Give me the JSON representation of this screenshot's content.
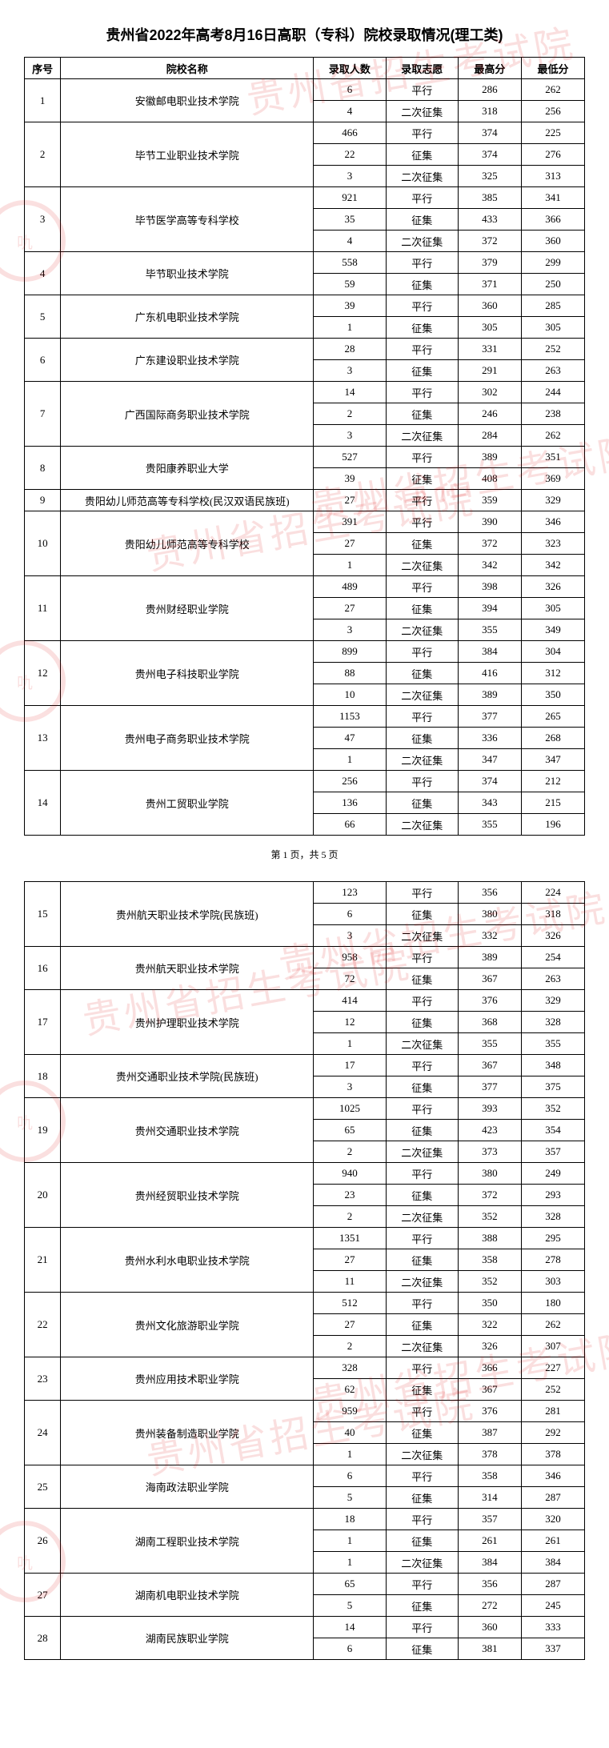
{
  "title": "贵州省2022年高考8月16日高职（专科）院校录取情况(理工类)",
  "headers": {
    "seq": "序号",
    "name": "院校名称",
    "count": "录取人数",
    "wish": "录取志愿",
    "max": "最高分",
    "min": "最低分"
  },
  "pager": "第 1 页，共 5 页",
  "watermark_text": "贵州省招生考试院",
  "watermark_color": "#dd0000",
  "table_border_color": "#000000",
  "font_color": "#000000",
  "background": "#ffffff",
  "schools_p1": [
    {
      "seq": "1",
      "name": "安徽邮电职业技术学院",
      "rows": [
        {
          "count": "6",
          "wish": "平行",
          "max": "286",
          "min": "262"
        },
        {
          "count": "4",
          "wish": "二次征集",
          "max": "318",
          "min": "256"
        }
      ]
    },
    {
      "seq": "2",
      "name": "毕节工业职业技术学院",
      "rows": [
        {
          "count": "466",
          "wish": "平行",
          "max": "374",
          "min": "225"
        },
        {
          "count": "22",
          "wish": "征集",
          "max": "374",
          "min": "276"
        },
        {
          "count": "3",
          "wish": "二次征集",
          "max": "325",
          "min": "313"
        }
      ]
    },
    {
      "seq": "3",
      "name": "毕节医学高等专科学校",
      "rows": [
        {
          "count": "921",
          "wish": "平行",
          "max": "385",
          "min": "341"
        },
        {
          "count": "35",
          "wish": "征集",
          "max": "433",
          "min": "366"
        },
        {
          "count": "4",
          "wish": "二次征集",
          "max": "372",
          "min": "360"
        }
      ]
    },
    {
      "seq": "4",
      "name": "毕节职业技术学院",
      "rows": [
        {
          "count": "558",
          "wish": "平行",
          "max": "379",
          "min": "299"
        },
        {
          "count": "59",
          "wish": "征集",
          "max": "371",
          "min": "250"
        }
      ]
    },
    {
      "seq": "5",
      "name": "广东机电职业技术学院",
      "rows": [
        {
          "count": "39",
          "wish": "平行",
          "max": "360",
          "min": "285"
        },
        {
          "count": "1",
          "wish": "征集",
          "max": "305",
          "min": "305"
        }
      ]
    },
    {
      "seq": "6",
      "name": "广东建设职业技术学院",
      "rows": [
        {
          "count": "28",
          "wish": "平行",
          "max": "331",
          "min": "252"
        },
        {
          "count": "3",
          "wish": "征集",
          "max": "291",
          "min": "263"
        }
      ]
    },
    {
      "seq": "7",
      "name": "广西国际商务职业技术学院",
      "rows": [
        {
          "count": "14",
          "wish": "平行",
          "max": "302",
          "min": "244"
        },
        {
          "count": "2",
          "wish": "征集",
          "max": "246",
          "min": "238"
        },
        {
          "count": "3",
          "wish": "二次征集",
          "max": "284",
          "min": "262"
        }
      ]
    },
    {
      "seq": "8",
      "name": "贵阳康养职业大学",
      "rows": [
        {
          "count": "527",
          "wish": "平行",
          "max": "389",
          "min": "351"
        },
        {
          "count": "39",
          "wish": "征集",
          "max": "408",
          "min": "369"
        }
      ]
    },
    {
      "seq": "9",
      "name": "贵阳幼儿师范高等专科学校(民汉双语民族班)",
      "rows": [
        {
          "count": "27",
          "wish": "平行",
          "max": "359",
          "min": "329"
        }
      ]
    },
    {
      "seq": "10",
      "name": "贵阳幼儿师范高等专科学校",
      "rows": [
        {
          "count": "391",
          "wish": "平行",
          "max": "390",
          "min": "346"
        },
        {
          "count": "27",
          "wish": "征集",
          "max": "372",
          "min": "323"
        },
        {
          "count": "1",
          "wish": "二次征集",
          "max": "342",
          "min": "342"
        }
      ]
    },
    {
      "seq": "11",
      "name": "贵州财经职业学院",
      "rows": [
        {
          "count": "489",
          "wish": "平行",
          "max": "398",
          "min": "326"
        },
        {
          "count": "27",
          "wish": "征集",
          "max": "394",
          "min": "305"
        },
        {
          "count": "3",
          "wish": "二次征集",
          "max": "355",
          "min": "349"
        }
      ]
    },
    {
      "seq": "12",
      "name": "贵州电子科技职业学院",
      "rows": [
        {
          "count": "899",
          "wish": "平行",
          "max": "384",
          "min": "304"
        },
        {
          "count": "88",
          "wish": "征集",
          "max": "416",
          "min": "312"
        },
        {
          "count": "10",
          "wish": "二次征集",
          "max": "389",
          "min": "350"
        }
      ]
    },
    {
      "seq": "13",
      "name": "贵州电子商务职业技术学院",
      "rows": [
        {
          "count": "1153",
          "wish": "平行",
          "max": "377",
          "min": "265"
        },
        {
          "count": "47",
          "wish": "征集",
          "max": "336",
          "min": "268"
        },
        {
          "count": "1",
          "wish": "二次征集",
          "max": "347",
          "min": "347"
        }
      ]
    },
    {
      "seq": "14",
      "name": "贵州工贸职业学院",
      "rows": [
        {
          "count": "256",
          "wish": "平行",
          "max": "374",
          "min": "212"
        },
        {
          "count": "136",
          "wish": "征集",
          "max": "343",
          "min": "215"
        },
        {
          "count": "66",
          "wish": "二次征集",
          "max": "355",
          "min": "196"
        }
      ]
    }
  ],
  "schools_p2": [
    {
      "seq": "15",
      "name": "贵州航天职业技术学院(民族班)",
      "rows": [
        {
          "count": "123",
          "wish": "平行",
          "max": "356",
          "min": "224"
        },
        {
          "count": "6",
          "wish": "征集",
          "max": "380",
          "min": "318"
        },
        {
          "count": "3",
          "wish": "二次征集",
          "max": "332",
          "min": "326"
        }
      ]
    },
    {
      "seq": "16",
      "name": "贵州航天职业技术学院",
      "rows": [
        {
          "count": "958",
          "wish": "平行",
          "max": "389",
          "min": "254"
        },
        {
          "count": "72",
          "wish": "征集",
          "max": "367",
          "min": "263"
        }
      ]
    },
    {
      "seq": "17",
      "name": "贵州护理职业技术学院",
      "rows": [
        {
          "count": "414",
          "wish": "平行",
          "max": "376",
          "min": "329"
        },
        {
          "count": "12",
          "wish": "征集",
          "max": "368",
          "min": "328"
        },
        {
          "count": "1",
          "wish": "二次征集",
          "max": "355",
          "min": "355"
        }
      ]
    },
    {
      "seq": "18",
      "name": "贵州交通职业技术学院(民族班)",
      "rows": [
        {
          "count": "17",
          "wish": "平行",
          "max": "367",
          "min": "348"
        },
        {
          "count": "3",
          "wish": "征集",
          "max": "377",
          "min": "375"
        }
      ]
    },
    {
      "seq": "19",
      "name": "贵州交通职业技术学院",
      "rows": [
        {
          "count": "1025",
          "wish": "平行",
          "max": "393",
          "min": "352"
        },
        {
          "count": "65",
          "wish": "征集",
          "max": "423",
          "min": "354"
        },
        {
          "count": "2",
          "wish": "二次征集",
          "max": "373",
          "min": "357"
        }
      ]
    },
    {
      "seq": "20",
      "name": "贵州经贸职业技术学院",
      "rows": [
        {
          "count": "940",
          "wish": "平行",
          "max": "380",
          "min": "249"
        },
        {
          "count": "23",
          "wish": "征集",
          "max": "372",
          "min": "293"
        },
        {
          "count": "2",
          "wish": "二次征集",
          "max": "352",
          "min": "328"
        }
      ]
    },
    {
      "seq": "21",
      "name": "贵州水利水电职业技术学院",
      "rows": [
        {
          "count": "1351",
          "wish": "平行",
          "max": "388",
          "min": "295"
        },
        {
          "count": "27",
          "wish": "征集",
          "max": "358",
          "min": "278"
        },
        {
          "count": "11",
          "wish": "二次征集",
          "max": "352",
          "min": "303"
        }
      ]
    },
    {
      "seq": "22",
      "name": "贵州文化旅游职业学院",
      "rows": [
        {
          "count": "512",
          "wish": "平行",
          "max": "350",
          "min": "180"
        },
        {
          "count": "27",
          "wish": "征集",
          "max": "322",
          "min": "262"
        },
        {
          "count": "2",
          "wish": "二次征集",
          "max": "326",
          "min": "307"
        }
      ]
    },
    {
      "seq": "23",
      "name": "贵州应用技术职业学院",
      "rows": [
        {
          "count": "328",
          "wish": "平行",
          "max": "366",
          "min": "227"
        },
        {
          "count": "62",
          "wish": "征集",
          "max": "367",
          "min": "252"
        }
      ]
    },
    {
      "seq": "24",
      "name": "贵州装备制造职业学院",
      "rows": [
        {
          "count": "959",
          "wish": "平行",
          "max": "376",
          "min": "281"
        },
        {
          "count": "40",
          "wish": "征集",
          "max": "387",
          "min": "292"
        },
        {
          "count": "1",
          "wish": "二次征集",
          "max": "378",
          "min": "378"
        }
      ]
    },
    {
      "seq": "25",
      "name": "海南政法职业学院",
      "rows": [
        {
          "count": "6",
          "wish": "平行",
          "max": "358",
          "min": "346"
        },
        {
          "count": "5",
          "wish": "征集",
          "max": "314",
          "min": "287"
        }
      ]
    },
    {
      "seq": "26",
      "name": "湖南工程职业技术学院",
      "rows": [
        {
          "count": "18",
          "wish": "平行",
          "max": "357",
          "min": "320"
        },
        {
          "count": "1",
          "wish": "征集",
          "max": "261",
          "min": "261"
        },
        {
          "count": "1",
          "wish": "二次征集",
          "max": "384",
          "min": "384"
        }
      ]
    },
    {
      "seq": "27",
      "name": "湖南机电职业技术学院",
      "rows": [
        {
          "count": "65",
          "wish": "平行",
          "max": "356",
          "min": "287"
        },
        {
          "count": "5",
          "wish": "征集",
          "max": "272",
          "min": "245"
        }
      ]
    },
    {
      "seq": "28",
      "name": "湖南民族职业学院",
      "rows": [
        {
          "count": "14",
          "wish": "平行",
          "max": "360",
          "min": "333"
        },
        {
          "count": "6",
          "wish": "征集",
          "max": "381",
          "min": "337"
        }
      ]
    }
  ]
}
